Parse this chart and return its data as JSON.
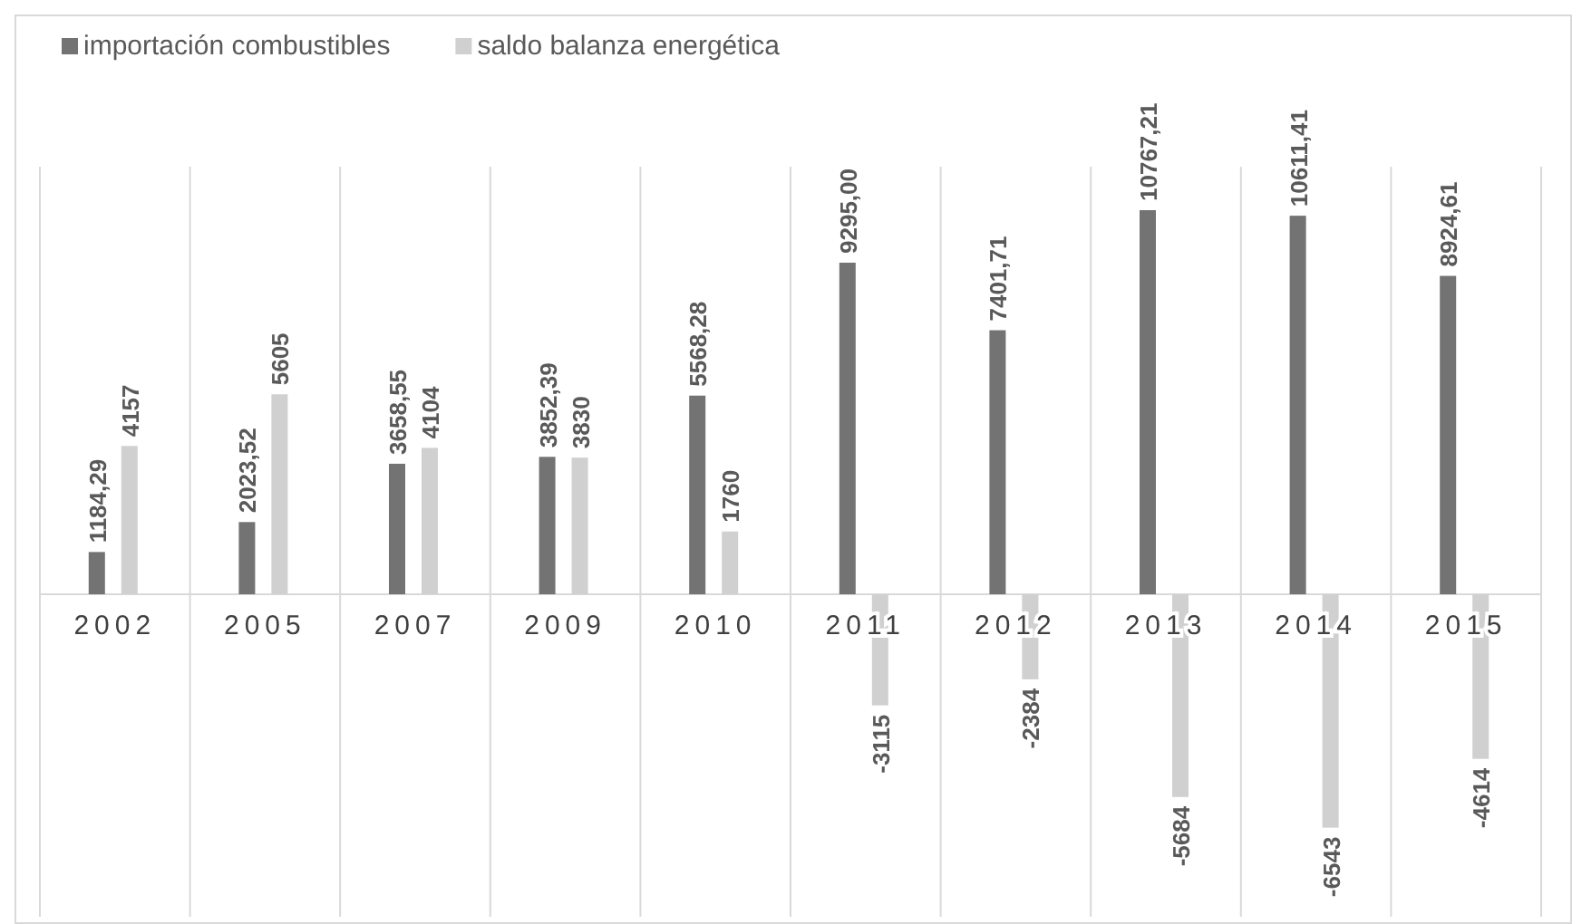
{
  "chart_data": {
    "type": "bar",
    "categories": [
      "2002",
      "2005",
      "2007",
      "2009",
      "2010",
      "2011",
      "2012",
      "2013",
      "2014",
      "2015"
    ],
    "series": [
      {
        "name": "importación combustibles",
        "color": "#737373",
        "values": [
          1184.29,
          2023.52,
          3658.55,
          3852.39,
          5568.28,
          9295.0,
          7401.71,
          10767.21,
          10611.41,
          8924.61
        ],
        "value_labels": [
          "1184,29",
          "2023,52",
          "3658,55",
          "3852,39",
          "5568,28",
          "9295,00",
          "7401,71",
          "10767,21",
          "10611,41",
          "8924,61"
        ]
      },
      {
        "name": "saldo balanza energética",
        "color": "#d0d0d0",
        "values": [
          4157,
          5605,
          4104,
          3830,
          1760,
          -3115,
          -2384,
          -5684,
          -6543,
          -4614
        ],
        "value_labels": [
          "4157",
          "5605",
          "4104",
          "3830",
          "1760",
          "-3115",
          "-2384",
          "-5684",
          "-6543",
          "-4614"
        ]
      }
    ],
    "grid": "x",
    "legend": "top left"
  }
}
